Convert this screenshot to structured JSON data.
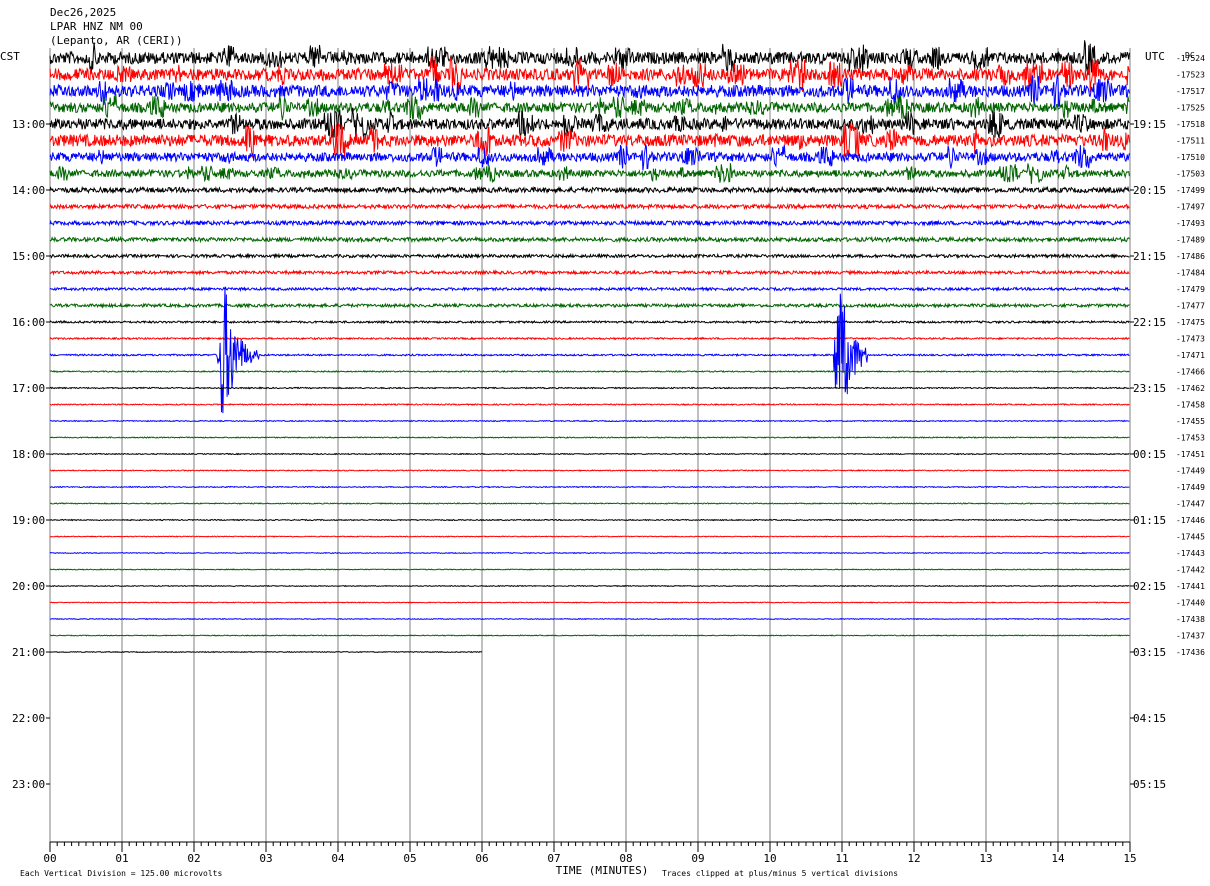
{
  "chart_data": {
    "type": "line",
    "date": "Dec26,2025",
    "station": "LPAR HNZ NM 00",
    "location": "(Lepanto, AR (CERI))",
    "left_axis_label": "CST",
    "right_axis_label": "UTC",
    "offset_header": "DC",
    "xlabel": "TIME (MINUTES)",
    "x_ticks": [
      "00",
      "01",
      "02",
      "03",
      "04",
      "05",
      "06",
      "07",
      "08",
      "09",
      "10",
      "11",
      "12",
      "13",
      "14",
      "15"
    ],
    "xlim": [
      0,
      15
    ],
    "left_hour_labels": [
      "13:00",
      "14:00",
      "15:00",
      "16:00",
      "17:00",
      "18:00",
      "19:00",
      "20:00",
      "21:00",
      "22:00",
      "23:00"
    ],
    "right_hour_labels": [
      "19:15",
      "20:15",
      "21:15",
      "22:15",
      "23:15",
      "00:15",
      "01:15",
      "02:15",
      "03:15",
      "04:15",
      "05:15"
    ],
    "trace_colors": [
      "#000000",
      "#ff0000",
      "#0000ff",
      "#006400"
    ],
    "offsets": [
      "-17524",
      "-17523",
      "-17517",
      "-17525",
      "-17518",
      "-17511",
      "-17510",
      "-17503",
      "-17499",
      "-17497",
      "-17493",
      "-17489",
      "-17486",
      "-17484",
      "-17479",
      "-17477",
      "-17475",
      "-17473",
      "-17471",
      "-17466",
      "-17462",
      "-17458",
      "-17455",
      "-17453",
      "-17451",
      "-17449",
      "-17449",
      "-17447",
      "-17446",
      "-17445",
      "-17443",
      "-17442",
      "-17441",
      "-17440",
      "-17438",
      "-17437",
      "-17436"
    ],
    "noise_levels": [
      6,
      6,
      6,
      5,
      5.5,
      6,
      4.5,
      3.5,
      2.5,
      2,
      2,
      2,
      1.5,
      1.5,
      1.3,
      1.5,
      1,
      0.8,
      0.8,
      0.6,
      0.6,
      0.6,
      0.5,
      0.5,
      0.5,
      0.5,
      0.5,
      0.5,
      0.5,
      0.4,
      0.4,
      0.4,
      0.4,
      0.4,
      0.4,
      0.4,
      0.4
    ],
    "last_trace_end_minute": 6.0,
    "events": [
      {
        "trace": 18,
        "minute": 2.4,
        "amplitude": 5,
        "duration_min": 0.5
      },
      {
        "trace": 18,
        "minute": 10.95,
        "amplitude": 5,
        "duration_min": 0.4
      }
    ],
    "footer_left": "Each Vertical Division =  125.00 microvolts",
    "footer_right": "Traces clipped at plus/minus 5 vertical divisions"
  }
}
